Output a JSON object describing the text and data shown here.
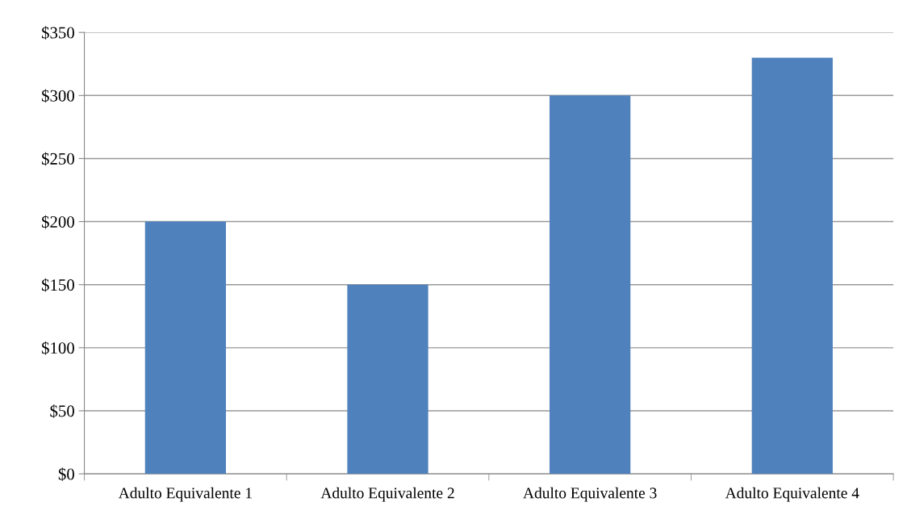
{
  "chart_data": {
    "type": "bar",
    "categories": [
      "Adulto Equivalente 1",
      "Adulto Equivalente 2",
      "Adulto Equivalente 3",
      "Adulto Equivalente 4"
    ],
    "values": [
      200,
      150,
      300,
      330
    ],
    "color": "#4f81bd",
    "ylim": [
      0,
      350
    ],
    "yticks": [
      {
        "value": 0,
        "label": "$0"
      },
      {
        "value": 50,
        "label": "$50"
      },
      {
        "value": 100,
        "label": "$100"
      },
      {
        "value": 150,
        "label": "$150"
      },
      {
        "value": 200,
        "label": "$200"
      },
      {
        "value": 250,
        "label": "$250"
      },
      {
        "value": 300,
        "label": "$300"
      },
      {
        "value": 350,
        "label": "$350"
      }
    ],
    "grid": "y",
    "legend": false
  }
}
